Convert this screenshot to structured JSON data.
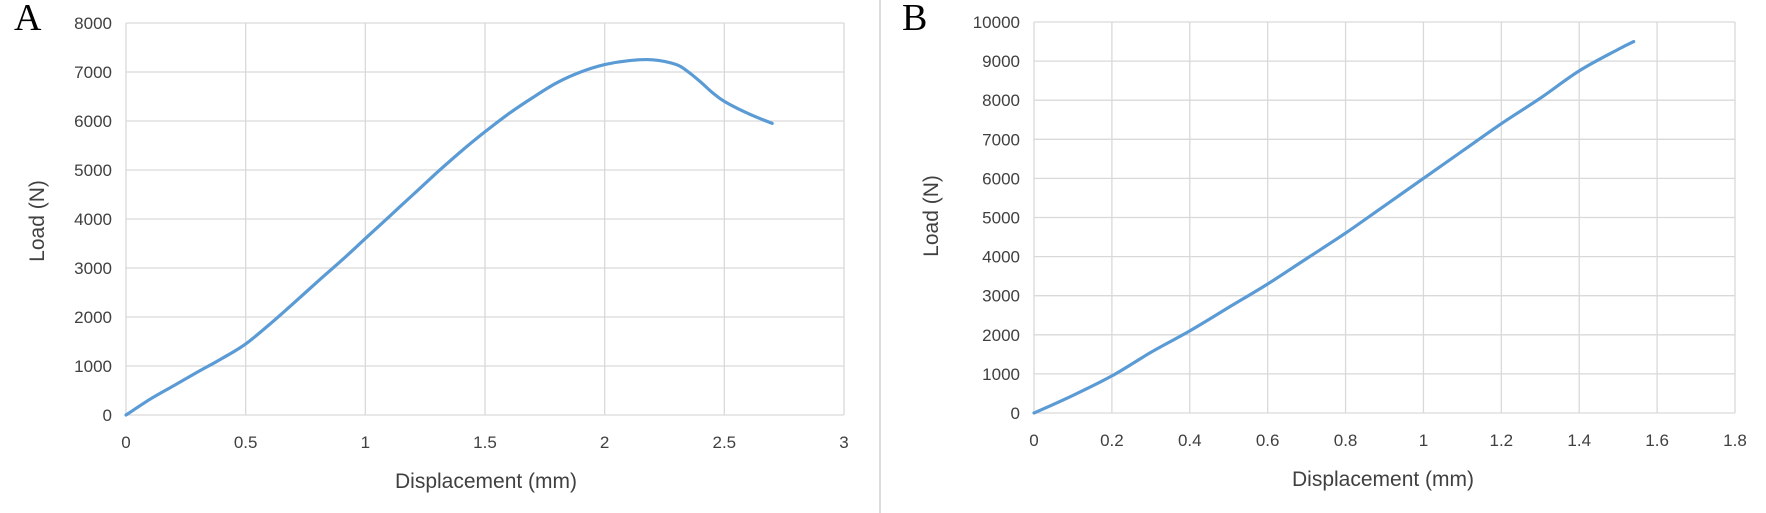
{
  "colors": {
    "series": "#5b9bd5",
    "grid": "#d9d9d9",
    "text": "#404040"
  },
  "chart_data": [
    {
      "panel_label": "A",
      "type": "line",
      "title": "",
      "xlabel": "Displacement (mm)",
      "ylabel": "Load (N)",
      "xlim": [
        0,
        3
      ],
      "ylim": [
        0,
        8000
      ],
      "x_ticks": [
        "0",
        "0.5",
        "1",
        "1.5",
        "2",
        "2.5",
        "3"
      ],
      "y_ticks": [
        "0",
        "1000",
        "2000",
        "3000",
        "4000",
        "5000",
        "6000",
        "7000",
        "8000"
      ],
      "grid": true,
      "legend": "none",
      "series": [
        {
          "x": [
            0,
            0.1,
            0.2,
            0.3,
            0.4,
            0.5,
            0.6,
            0.7,
            0.8,
            0.9,
            1.0,
            1.1,
            1.2,
            1.3,
            1.4,
            1.5,
            1.6,
            1.7,
            1.8,
            1.9,
            2.0,
            2.1,
            2.2,
            2.3,
            2.35,
            2.4,
            2.45,
            2.5,
            2.6,
            2.7
          ],
          "y": [
            0,
            320,
            600,
            880,
            1150,
            1450,
            1850,
            2280,
            2720,
            3150,
            3600,
            4050,
            4500,
            4950,
            5380,
            5780,
            6150,
            6480,
            6780,
            7000,
            7150,
            7230,
            7250,
            7150,
            7000,
            6800,
            6580,
            6400,
            6150,
            5950
          ]
        }
      ]
    },
    {
      "panel_label": "B",
      "type": "line",
      "title": "",
      "xlabel": "Displacement (mm)",
      "ylabel": "Load (N)",
      "xlim": [
        0,
        1.8
      ],
      "ylim": [
        0,
        10000
      ],
      "x_ticks": [
        "0",
        "0.2",
        "0.4",
        "0.6",
        "0.8",
        "1",
        "1.2",
        "1.4",
        "1.6",
        "1.8"
      ],
      "y_ticks": [
        "0",
        "1000",
        "2000",
        "3000",
        "4000",
        "5000",
        "6000",
        "7000",
        "8000",
        "9000",
        "10000"
      ],
      "grid": true,
      "legend": "none",
      "series": [
        {
          "x": [
            0,
            0.1,
            0.2,
            0.3,
            0.4,
            0.5,
            0.6,
            0.7,
            0.8,
            0.9,
            1.0,
            1.1,
            1.2,
            1.3,
            1.4,
            1.5,
            1.54
          ],
          "y": [
            0,
            450,
            950,
            1550,
            2100,
            2700,
            3300,
            3950,
            4600,
            5300,
            6000,
            6700,
            7400,
            8050,
            8750,
            9300,
            9500
          ]
        }
      ]
    }
  ]
}
